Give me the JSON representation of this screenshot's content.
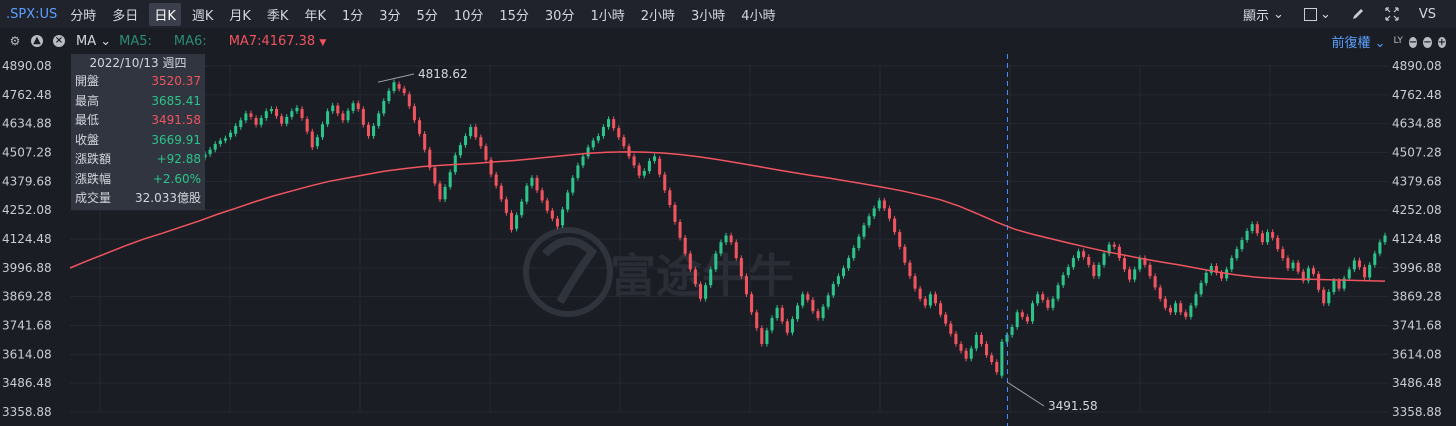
{
  "header": {
    "symbol": ".SPX:US",
    "periods": [
      "分時",
      "多日",
      "日K",
      "週K",
      "月K",
      "季K",
      "年K",
      "1分",
      "3分",
      "5分",
      "10分",
      "15分",
      "30分",
      "1小時",
      "2小時",
      "3小時",
      "4小時"
    ],
    "active_period": "日K",
    "display_label": "顯示",
    "vs_label": "VS"
  },
  "indicator_bar": {
    "ma_select": "MA",
    "ma5_label": "MA5:",
    "ma6_label": "MA6:",
    "ma7_label": "MA7:4167.38",
    "adjust_label": "前復權"
  },
  "info_box": {
    "date": "2022/10/13 週四",
    "rows": [
      {
        "label": "開盤",
        "value": "3520.37",
        "color": "#f0545f"
      },
      {
        "label": "最高",
        "value": "3685.41",
        "color": "#2cc48a"
      },
      {
        "label": "最低",
        "value": "3491.58",
        "color": "#f0545f"
      },
      {
        "label": "收盤",
        "value": "3669.91",
        "color": "#2cc48a"
      },
      {
        "label": "漲跌額",
        "value": "+92.88",
        "color": "#2cc48a"
      },
      {
        "label": "漲跌幅",
        "value": "+2.60%",
        "color": "#2cc48a"
      },
      {
        "label": "成交量",
        "value": "32.033億股",
        "color": "#d4d7de"
      }
    ]
  },
  "chart_data": {
    "type": "candlestick",
    "y_ticks": [
      "4890.08",
      "4762.48",
      "4634.88",
      "4507.28",
      "4379.68",
      "4252.08",
      "4124.48",
      "3996.88",
      "3869.28",
      "3741.68",
      "3614.08",
      "3486.48",
      "3358.88"
    ],
    "ylim": [
      3358.88,
      4890.08
    ],
    "annotations": [
      {
        "label": "4818.62",
        "value": 4818.62
      },
      {
        "label": "3491.58",
        "value": 3491.58
      }
    ],
    "ma_line_closes": [
      3996,
      4030,
      4062,
      4095,
      4125,
      4150,
      4178,
      4205,
      4235,
      4262,
      4290,
      4315,
      4338,
      4360,
      4380,
      4395,
      4410,
      4425,
      4435,
      4445,
      4450,
      4455,
      4460,
      4466,
      4472,
      4480,
      4488,
      4496,
      4504,
      4508,
      4510,
      4509,
      4505,
      4498,
      4488,
      4476,
      4462,
      4448,
      4433,
      4419,
      4406,
      4394,
      4380,
      4366,
      4352,
      4336,
      4318,
      4298,
      4270,
      4236,
      4200,
      4168,
      4145,
      4125,
      4105,
      4086,
      4068,
      4052,
      4036,
      4022,
      4008,
      3993,
      3978,
      3965,
      3956,
      3950,
      3946,
      3946,
      3944,
      3942,
      3940,
      3938
    ],
    "candles": [
      [
        4485,
        4500
      ],
      [
        4500,
        4520
      ],
      [
        4520,
        4545
      ],
      [
        4545,
        4560
      ],
      [
        4560,
        4570
      ],
      [
        4575,
        4595
      ],
      [
        4590,
        4625
      ],
      [
        4620,
        4650
      ],
      [
        4650,
        4680
      ],
      [
        4680,
        4665
      ],
      [
        4660,
        4630
      ],
      [
        4630,
        4660
      ],
      [
        4660,
        4690
      ],
      [
        4690,
        4700
      ],
      [
        4700,
        4668
      ],
      [
        4668,
        4635
      ],
      [
        4635,
        4665
      ],
      [
        4665,
        4690
      ],
      [
        4690,
        4705
      ],
      [
        4700,
        4660
      ],
      [
        4655,
        4600
      ],
      [
        4600,
        4530
      ],
      [
        4535,
        4575
      ],
      [
        4575,
        4632
      ],
      [
        4632,
        4690
      ],
      [
        4690,
        4715
      ],
      [
        4715,
        4680
      ],
      [
        4680,
        4650
      ],
      [
        4650,
        4692
      ],
      [
        4692,
        4725
      ],
      [
        4725,
        4700
      ],
      [
        4700,
        4630
      ],
      [
        4630,
        4580
      ],
      [
        4580,
        4625
      ],
      [
        4625,
        4680
      ],
      [
        4680,
        4735
      ],
      [
        4735,
        4780
      ],
      [
        4780,
        4818
      ],
      [
        4810,
        4790
      ],
      [
        4790,
        4770
      ],
      [
        4765,
        4712
      ],
      [
        4712,
        4650
      ],
      [
        4650,
        4590
      ],
      [
        4590,
        4520
      ],
      [
        4520,
        4440
      ],
      [
        4440,
        4370
      ],
      [
        4370,
        4300
      ],
      [
        4300,
        4355
      ],
      [
        4355,
        4420
      ],
      [
        4420,
        4495
      ],
      [
        4495,
        4540
      ],
      [
        4540,
        4580
      ],
      [
        4580,
        4620
      ],
      [
        4620,
        4575
      ],
      [
        4575,
        4535
      ],
      [
        4535,
        4475
      ],
      [
        4475,
        4410
      ],
      [
        4410,
        4360
      ],
      [
        4360,
        4300
      ],
      [
        4300,
        4240
      ],
      [
        4240,
        4165
      ],
      [
        4170,
        4230
      ],
      [
        4230,
        4290
      ],
      [
        4290,
        4360
      ],
      [
        4360,
        4395
      ],
      [
        4395,
        4340
      ],
      [
        4340,
        4295
      ],
      [
        4295,
        4250
      ],
      [
        4250,
        4215
      ],
      [
        4215,
        4180
      ],
      [
        4185,
        4255
      ],
      [
        4255,
        4330
      ],
      [
        4330,
        4395
      ],
      [
        4395,
        4450
      ],
      [
        4450,
        4490
      ],
      [
        4490,
        4530
      ],
      [
        4530,
        4560
      ],
      [
        4560,
        4580
      ],
      [
        4580,
        4620
      ],
      [
        4620,
        4655
      ],
      [
        4655,
        4615
      ],
      [
        4615,
        4575
      ],
      [
        4575,
        4535
      ],
      [
        4535,
        4490
      ],
      [
        4490,
        4450
      ],
      [
        4450,
        4405
      ],
      [
        4405,
        4425
      ],
      [
        4425,
        4470
      ],
      [
        4470,
        4490
      ],
      [
        4480,
        4410
      ],
      [
        4410,
        4340
      ],
      [
        4340,
        4275
      ],
      [
        4275,
        4200
      ],
      [
        4200,
        4130
      ],
      [
        4130,
        4060
      ],
      [
        4060,
        3990
      ],
      [
        3990,
        3925
      ],
      [
        3925,
        3860
      ],
      [
        3860,
        3920
      ],
      [
        3920,
        3990
      ],
      [
        3990,
        4060
      ],
      [
        4060,
        4110
      ],
      [
        4110,
        4140
      ],
      [
        4140,
        4110
      ],
      [
        4110,
        4040
      ],
      [
        4040,
        3960
      ],
      [
        3960,
        3880
      ],
      [
        3880,
        3800
      ],
      [
        3800,
        3730
      ],
      [
        3730,
        3660
      ],
      [
        3660,
        3720
      ],
      [
        3720,
        3775
      ],
      [
        3775,
        3820
      ],
      [
        3820,
        3760
      ],
      [
        3760,
        3710
      ],
      [
        3710,
        3770
      ],
      [
        3770,
        3830
      ],
      [
        3830,
        3880
      ],
      [
        3880,
        3855
      ],
      [
        3855,
        3805
      ],
      [
        3805,
        3775
      ],
      [
        3775,
        3825
      ],
      [
        3825,
        3875
      ],
      [
        3875,
        3925
      ],
      [
        3925,
        3960
      ],
      [
        3960,
        3995
      ],
      [
        3995,
        4040
      ],
      [
        4040,
        4085
      ],
      [
        4085,
        4135
      ],
      [
        4135,
        4185
      ],
      [
        4185,
        4225
      ],
      [
        4225,
        4260
      ],
      [
        4260,
        4295
      ],
      [
        4295,
        4260
      ],
      [
        4260,
        4215
      ],
      [
        4215,
        4155
      ],
      [
        4155,
        4090
      ],
      [
        4090,
        4020
      ],
      [
        4020,
        3960
      ],
      [
        3960,
        3905
      ],
      [
        3905,
        3860
      ],
      [
        3860,
        3830
      ],
      [
        3830,
        3880
      ],
      [
        3880,
        3840
      ],
      [
        3840,
        3790
      ],
      [
        3790,
        3750
      ],
      [
        3750,
        3705
      ],
      [
        3705,
        3660
      ],
      [
        3660,
        3630
      ],
      [
        3630,
        3595
      ],
      [
        3595,
        3640
      ],
      [
        3640,
        3700
      ],
      [
        3700,
        3660
      ],
      [
        3660,
        3610
      ],
      [
        3610,
        3580
      ],
      [
        3580,
        3535
      ],
      [
        3520,
        3670
      ],
      [
        3670,
        3700
      ],
      [
        3700,
        3735
      ],
      [
        3735,
        3800
      ],
      [
        3800,
        3780
      ],
      [
        3780,
        3760
      ],
      [
        3760,
        3840
      ],
      [
        3840,
        3880
      ],
      [
        3880,
        3855
      ],
      [
        3855,
        3820
      ],
      [
        3820,
        3860
      ],
      [
        3860,
        3920
      ],
      [
        3920,
        3965
      ],
      [
        3965,
        4000
      ],
      [
        4000,
        4040
      ],
      [
        4040,
        4070
      ],
      [
        4070,
        4045
      ],
      [
        4045,
        4010
      ],
      [
        4010,
        3960
      ],
      [
        3960,
        4010
      ],
      [
        4010,
        4060
      ],
      [
        4060,
        4100
      ],
      [
        4100,
        4090
      ],
      [
        4090,
        4040
      ],
      [
        4040,
        3990
      ],
      [
        3990,
        3945
      ],
      [
        3945,
        3990
      ],
      [
        3990,
        4040
      ],
      [
        4040,
        4010
      ],
      [
        4010,
        3960
      ],
      [
        3960,
        3910
      ],
      [
        3910,
        3860
      ],
      [
        3860,
        3820
      ],
      [
        3820,
        3800
      ],
      [
        3800,
        3840
      ],
      [
        3840,
        3800
      ],
      [
        3800,
        3780
      ],
      [
        3780,
        3830
      ],
      [
        3830,
        3880
      ],
      [
        3880,
        3930
      ],
      [
        3930,
        3975
      ],
      [
        3975,
        4005
      ],
      [
        4005,
        3975
      ],
      [
        3975,
        3950
      ],
      [
        3950,
        3990
      ],
      [
        3990,
        4040
      ],
      [
        4040,
        4080
      ],
      [
        4080,
        4120
      ],
      [
        4120,
        4160
      ],
      [
        4160,
        4190
      ],
      [
        4190,
        4150
      ],
      [
        4150,
        4110
      ],
      [
        4110,
        4155
      ],
      [
        4155,
        4130
      ],
      [
        4130,
        4080
      ],
      [
        4080,
        4040
      ],
      [
        4040,
        3995
      ],
      [
        3995,
        4020
      ],
      [
        4020,
        3980
      ],
      [
        3980,
        3940
      ],
      [
        3940,
        3995
      ],
      [
        3995,
        3970
      ],
      [
        3970,
        3900
      ],
      [
        3900,
        3840
      ],
      [
        3840,
        3890
      ],
      [
        3890,
        3940
      ],
      [
        3940,
        3905
      ],
      [
        3905,
        3950
      ],
      [
        3950,
        3990
      ],
      [
        3990,
        4030
      ],
      [
        4030,
        4000
      ],
      [
        4000,
        3955
      ],
      [
        3955,
        4010
      ],
      [
        4010,
        4060
      ],
      [
        4060,
        4110
      ],
      [
        4110,
        4140
      ]
    ]
  }
}
